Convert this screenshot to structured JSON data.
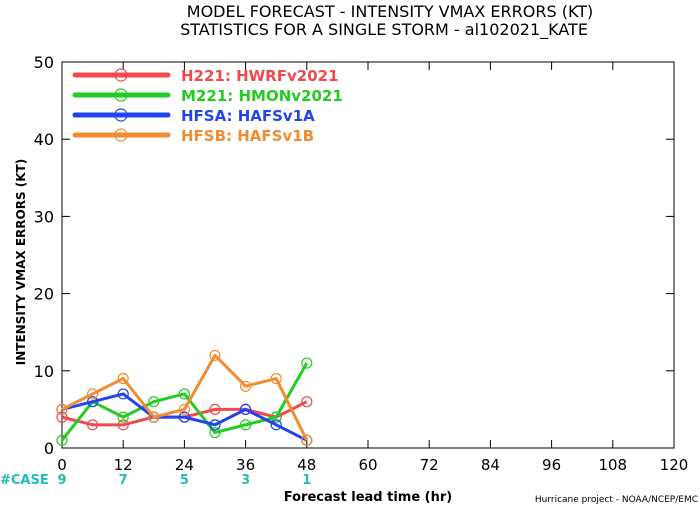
{
  "chart_data": {
    "type": "line",
    "title": "MODEL FORECAST - INTENSITY VMAX ERRORS (KT)",
    "subtitle": "STATISTICS FOR A SINGLE STORM - al102021_KATE",
    "xlabel": "Forecast lead time (hr)",
    "ylabel": "INTENSITY VMAX ERRORS (KT)",
    "xlim": [
      0,
      120
    ],
    "ylim": [
      0,
      50
    ],
    "xticks": [
      0,
      12,
      24,
      36,
      48,
      60,
      72,
      84,
      96,
      108,
      120
    ],
    "yticks": [
      0,
      10,
      20,
      30,
      40,
      50
    ],
    "grid": false,
    "legend_position": "top-left",
    "series": [
      {
        "name": "H221: HWRFv2021",
        "color": "#f04a4f",
        "x": [
          0,
          6,
          12,
          18,
          24,
          30,
          36,
          42,
          48
        ],
        "y": [
          4,
          3,
          3,
          4,
          4,
          5,
          5,
          4,
          6
        ]
      },
      {
        "name": "M221: HMONv2021",
        "color": "#22cc22",
        "x": [
          0,
          6,
          12,
          18,
          24,
          30,
          36,
          42,
          48
        ],
        "y": [
          1,
          6,
          4,
          6,
          7,
          2,
          3,
          4,
          11
        ]
      },
      {
        "name": "HFSA: HAFSv1A",
        "color": "#2244ee",
        "x": [
          0,
          6,
          12,
          18,
          24,
          30,
          36,
          42,
          48
        ],
        "y": [
          5,
          6,
          7,
          4,
          4,
          3,
          5,
          3,
          1
        ]
      },
      {
        "name": "HFSB: HAFSv1B",
        "color": "#f28c30",
        "x": [
          0,
          6,
          12,
          18,
          24,
          30,
          36,
          42,
          48
        ],
        "y": [
          5,
          7,
          9,
          4,
          5,
          12,
          8,
          9,
          1
        ]
      }
    ],
    "cases": {
      "label": "#CASE",
      "color": "#22bbbb",
      "x": [
        0,
        12,
        24,
        36,
        48
      ],
      "values": [
        "9",
        "7",
        "5",
        "3",
        "1"
      ]
    },
    "credit": "Hurricane project - NOAA/NCEP/EMC"
  }
}
